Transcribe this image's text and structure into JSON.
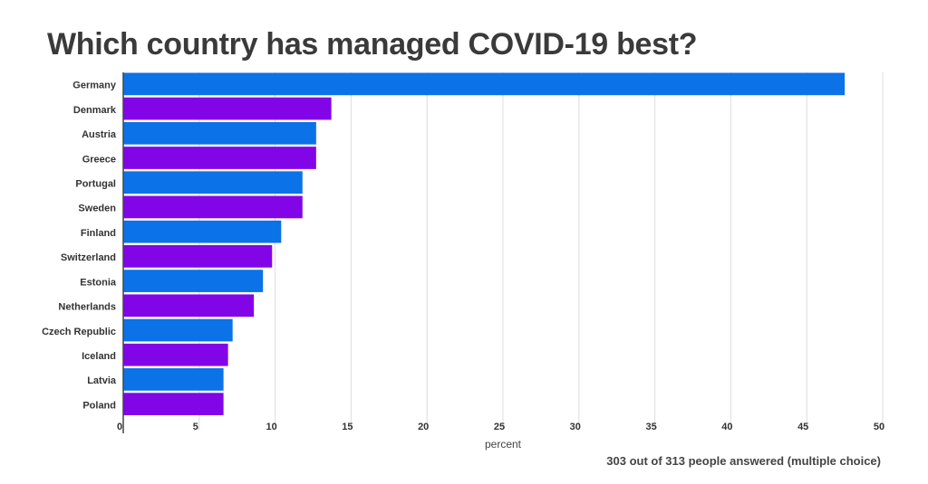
{
  "chart_data": {
    "type": "bar",
    "orientation": "horizontal",
    "title": "Which country has managed COVID-19 best?",
    "xlabel": "percent",
    "ylabel": "",
    "note": "303 out of 313 people answered (multiple choice)",
    "xlim": [
      0,
      50
    ],
    "xticks": [
      0,
      5,
      10,
      15,
      20,
      25,
      30,
      35,
      40,
      45,
      50
    ],
    "grid": true,
    "categories": [
      "Germany",
      "Denmark",
      "Austria",
      "Greece",
      "Portugal",
      "Sweden",
      "Finland",
      "Switzerland",
      "Estonia",
      "Netherlands",
      "Czech Republic",
      "Iceland",
      "Latvia",
      "Poland"
    ],
    "values": [
      47.5,
      13.7,
      12.7,
      12.7,
      11.8,
      11.8,
      10.4,
      9.8,
      9.2,
      8.6,
      7.2,
      6.9,
      6.6,
      6.6
    ],
    "colors": [
      "#0b72e7",
      "#8205e8"
    ]
  }
}
